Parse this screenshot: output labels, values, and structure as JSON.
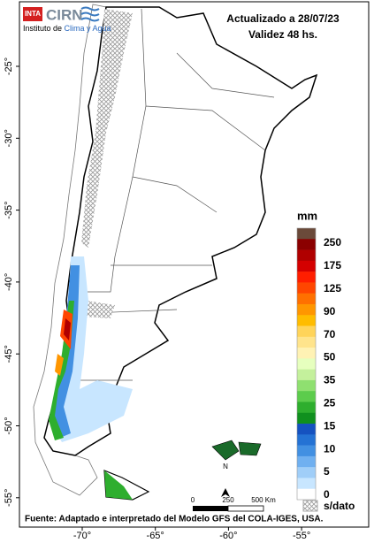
{
  "header": {
    "logo_inta": "INTA",
    "logo_cirn": "CIRN",
    "institute_prefix": "Instituto de ",
    "institute_highlight": "Clima y Agua",
    "updated": "Actualizado a 28/07/23",
    "validity": "Validez 48 hs."
  },
  "map": {
    "lat_ticks": [
      "-25°",
      "-30°",
      "-35°",
      "-40°",
      "-45°",
      "-50°",
      "-55°"
    ],
    "lon_ticks": [
      "-70°",
      "-65°",
      "-60°",
      "-55°"
    ],
    "scale_bar": [
      "0",
      "250",
      "500 Km"
    ],
    "north": "N"
  },
  "legend": {
    "title": "mm",
    "colors": [
      "#6b4a3a",
      "#8b0000",
      "#b00000",
      "#d40000",
      "#ff1e00",
      "#ff4600",
      "#ff7000",
      "#ff9600",
      "#ffbc00",
      "#ffd45a",
      "#ffe48c",
      "#fff2b4",
      "#e6ffbe",
      "#c4f09c",
      "#8fe070",
      "#5ccc4c",
      "#2eae2e",
      "#10901e",
      "#1552c0",
      "#2472d4",
      "#4290e2",
      "#70b0f0",
      "#a0ceF8",
      "#c8e6ff",
      "#ffffff"
    ],
    "labels": [
      "250",
      "175",
      "125",
      "90",
      "70",
      "50",
      "35",
      "25",
      "15",
      "10",
      "5",
      "0"
    ],
    "no_data": "s/dato"
  },
  "source": "Fuente: Adaptado e interpretado del Modelo GFS del COLA-IGES, USA."
}
